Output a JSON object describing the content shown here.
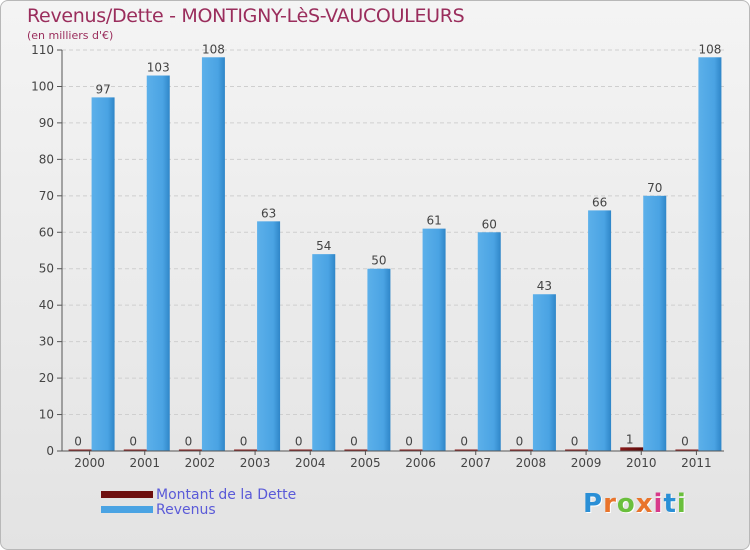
{
  "title": "Revenus/Dette - MONTIGNY-LèS-VAUCOULEURS",
  "subtitle": "(en milliers d'€)",
  "logo": {
    "text": "Proxiti",
    "letters": [
      "P",
      "r",
      "o",
      "x",
      "i",
      "t",
      "i"
    ],
    "colors": [
      "#2a8fd6",
      "#e9742b",
      "#6abf3c",
      "#e9742b",
      "#d83a8a",
      "#2a8fd6",
      "#6abf3c"
    ]
  },
  "colors": {
    "debt": "#6e0f0f",
    "revenue": "#4aa3e3",
    "revenue_dark": "#2f86c8",
    "axis": "#555555",
    "grid": "#c9c9c9",
    "legend_text": "#5a5ad8",
    "title": "#9a2d5c"
  },
  "chart_data": {
    "type": "bar",
    "title": "Revenus/Dette - MONTIGNY-LèS-VAUCOULEURS",
    "subtitle": "(en milliers d'€)",
    "xlabel": "",
    "ylabel": "",
    "ylim": [
      0,
      110
    ],
    "yticks": [
      0,
      10,
      20,
      30,
      40,
      50,
      60,
      70,
      80,
      90,
      100,
      110
    ],
    "grid": true,
    "legend_position": "bottom-left",
    "categories": [
      "2000",
      "2001",
      "2002",
      "2003",
      "2004",
      "2005",
      "2006",
      "2007",
      "2008",
      "2009",
      "2010",
      "2011"
    ],
    "series": [
      {
        "name": "Montant de la Dette",
        "values": [
          0,
          0,
          0,
          0,
          0,
          0,
          0,
          0,
          0,
          0,
          1,
          0
        ]
      },
      {
        "name": "Revenus",
        "values": [
          97,
          103,
          108,
          63,
          54,
          50,
          61,
          60,
          43,
          66,
          70,
          108
        ]
      }
    ]
  }
}
